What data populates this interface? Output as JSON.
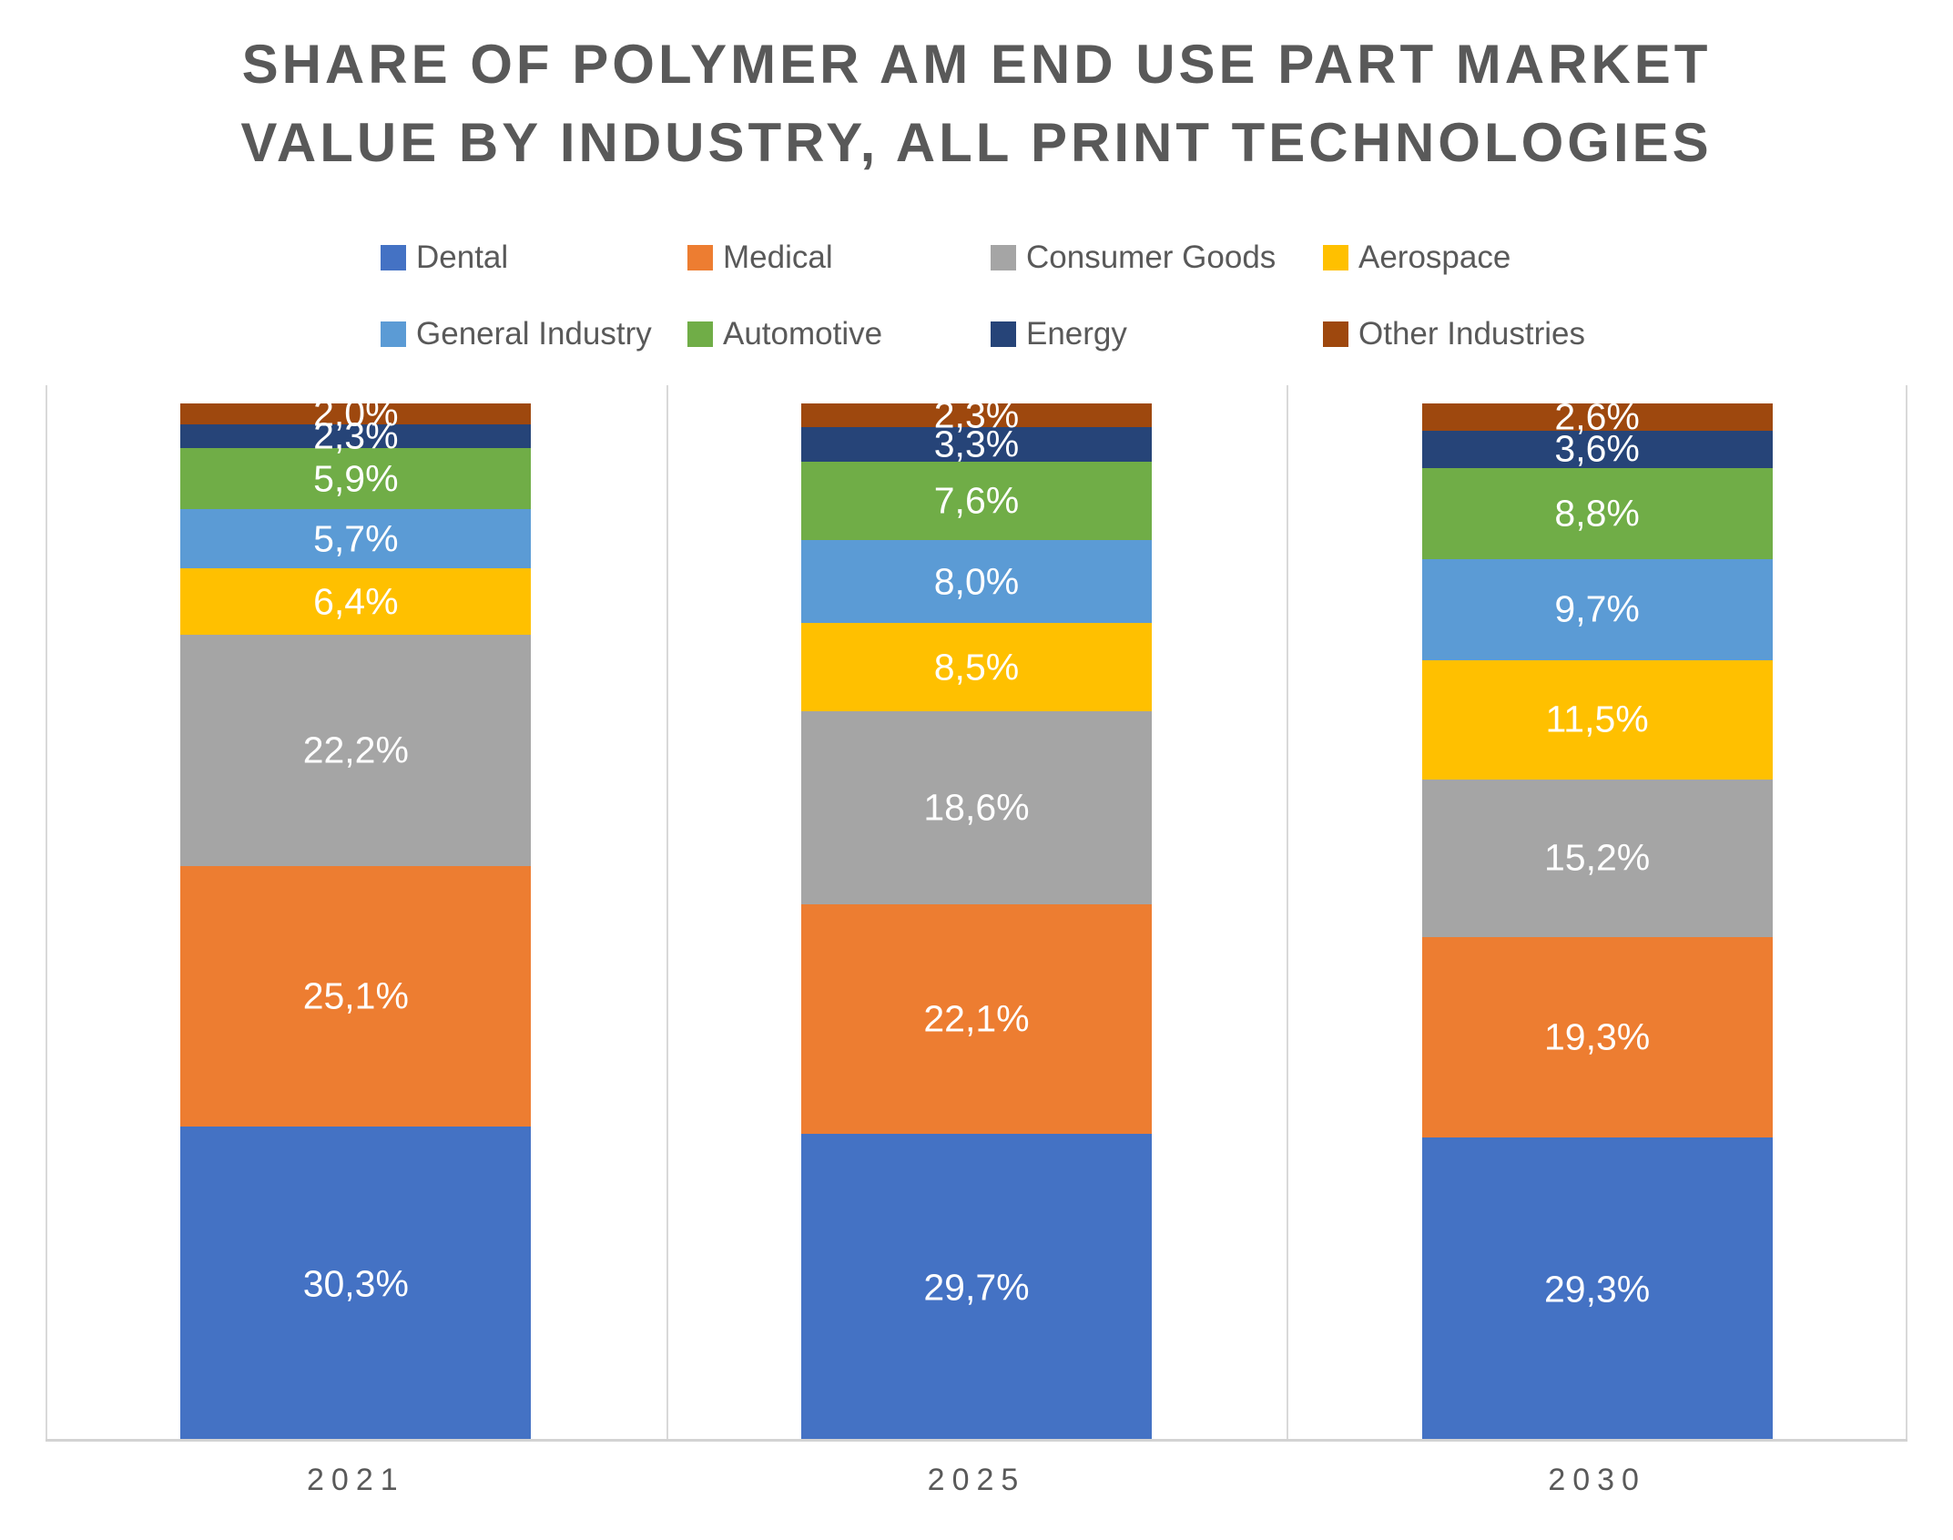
{
  "chart_data": {
    "type": "bar",
    "variant": "100%-stacked-column",
    "title": "SHARE OF POLYMER AM END USE PART MARKET VALUE BY INDUSTRY, ALL PRINT TECHNOLOGIES",
    "title_lines": [
      "SHARE OF POLYMER AM END USE PART MARKET",
      "VALUE BY INDUSTRY, ALL PRINT TECHNOLOGIES"
    ],
    "categories": [
      "2021",
      "2025",
      "2030"
    ],
    "series": [
      {
        "name": "Dental",
        "color": "#4472C4",
        "values": [
          30.3,
          29.7,
          29.3
        ]
      },
      {
        "name": "Medical",
        "color": "#ED7D31",
        "values": [
          25.1,
          22.1,
          19.3
        ]
      },
      {
        "name": "Consumer Goods",
        "color": "#A5A5A5",
        "values": [
          22.2,
          18.6,
          15.2
        ]
      },
      {
        "name": "Aerospace",
        "color": "#FFC000",
        "values": [
          6.4,
          8.5,
          11.5
        ]
      },
      {
        "name": "General Industry",
        "color": "#5B9BD5",
        "values": [
          5.7,
          8.0,
          9.7
        ]
      },
      {
        "name": "Automotive",
        "color": "#70AD47",
        "values": [
          5.9,
          7.6,
          8.8
        ]
      },
      {
        "name": "Energy",
        "color": "#264478",
        "values": [
          2.3,
          3.3,
          3.6
        ]
      },
      {
        "name": "Other Industries",
        "color": "#9E480E",
        "values": [
          2.0,
          2.3,
          2.6
        ]
      }
    ],
    "value_labels": {
      "decimal_separator": ",",
      "decimals": 1,
      "suffix": "%",
      "color": "#FFFFFF"
    },
    "legend_position": "top",
    "legend_rows": 2,
    "xlabel": "",
    "ylabel": "",
    "ylim": [
      0,
      100
    ],
    "grid": "vertical category separators only"
  },
  "style": {
    "background": "#FFFFFF",
    "title_color": "#595959",
    "legend_text_color": "#595959",
    "axis_text_color": "#595959",
    "gridline_color": "#D9D9D9",
    "axis_line_color": "#D3D3D3"
  }
}
